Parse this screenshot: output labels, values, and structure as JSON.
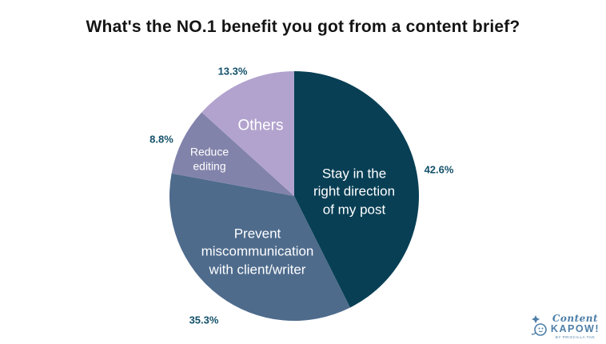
{
  "chart_data": {
    "type": "pie",
    "title": "What's the NO.1 benefit you got from a content brief?",
    "start_angle_deg": 0,
    "direction": "clockwise",
    "legend_position": "none",
    "labels_inside": true,
    "pct_label_color": "#12506a",
    "segments": [
      {
        "label": "Stay in the right direction of my post",
        "display": "Stay in the\nright direction\nof my post",
        "value": 42.6,
        "pct_label": "42.6%",
        "color": "#083f55"
      },
      {
        "label": "Prevent miscommunication with client/writer",
        "display": "Prevent\nmiscommunication\nwith client/writer",
        "value": 35.3,
        "pct_label": "35.3%",
        "color": "#4e6b8c"
      },
      {
        "label": "Reduce editing",
        "display": "Reduce\nediting",
        "value": 8.8,
        "pct_label": "8.8%",
        "color": "#8283ab"
      },
      {
        "label": "Others",
        "display": "Others",
        "value": 13.3,
        "pct_label": "13.3%",
        "color": "#b2a3ce"
      }
    ]
  },
  "logo": {
    "script_text": "Content",
    "kapow_text": "KAPOW!",
    "byline": "BY PRISCILLA TAN",
    "color": "#4d7ea8"
  }
}
